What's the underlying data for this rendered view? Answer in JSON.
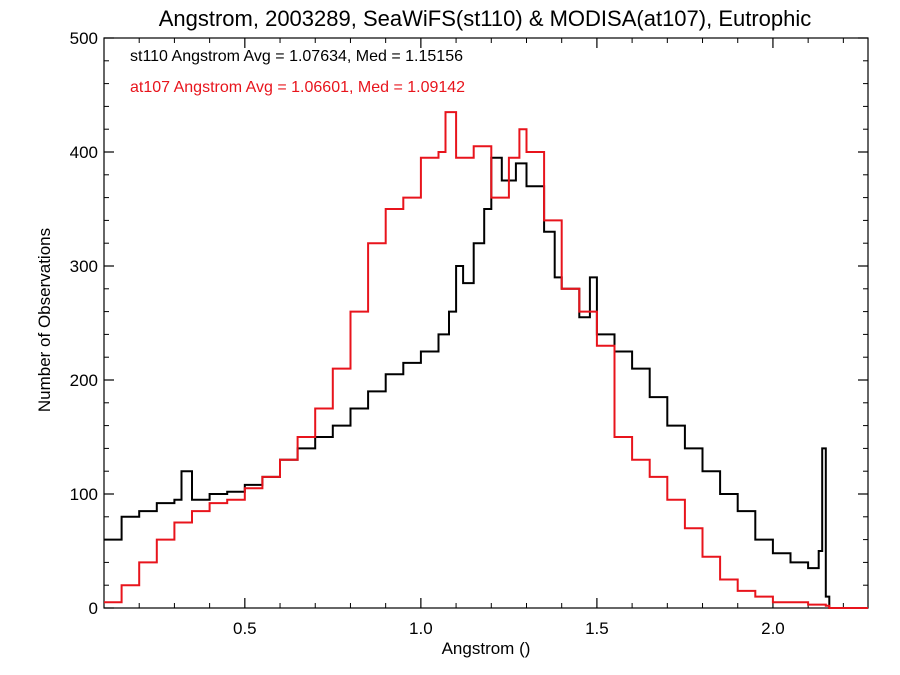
{
  "chart_data": {
    "type": "line",
    "title": "Angstrom, 2003289, SeaWiFS(st110) & MODISA(at107), Eutrophic",
    "xlabel": "Angstrom ()",
    "ylabel": "Number of Observations",
    "xlim": [
      0.1,
      2.27
    ],
    "ylim": [
      0,
      500
    ],
    "xticks": [
      0.5,
      1.0,
      1.5,
      2.0
    ],
    "xtick_labels": [
      "0.5",
      "1.0",
      "1.5",
      "2.0"
    ],
    "yticks": [
      0,
      100,
      200,
      300,
      400,
      500
    ],
    "ytick_labels": [
      "0",
      "100",
      "200",
      "300",
      "400",
      "500"
    ],
    "grid": false,
    "legend": "top-left, text annotations",
    "annotations": [
      {
        "text": "st110 Angstrom Avg = 1.07634, Med = 1.15156",
        "color": "#000000"
      },
      {
        "text": "at107 Angstrom Avg = 1.06601, Med = 1.09142",
        "color": "#e8141c"
      }
    ],
    "series": [
      {
        "color": "#000000",
        "points": [
          [
            0.1,
            60
          ],
          [
            0.15,
            80
          ],
          [
            0.2,
            85
          ],
          [
            0.25,
            92
          ],
          [
            0.3,
            95
          ],
          [
            0.32,
            120
          ],
          [
            0.35,
            95
          ],
          [
            0.4,
            100
          ],
          [
            0.45,
            102
          ],
          [
            0.5,
            108
          ],
          [
            0.55,
            115
          ],
          [
            0.6,
            130
          ],
          [
            0.65,
            140
          ],
          [
            0.7,
            150
          ],
          [
            0.75,
            160
          ],
          [
            0.8,
            175
          ],
          [
            0.85,
            190
          ],
          [
            0.9,
            205
          ],
          [
            0.95,
            215
          ],
          [
            1.0,
            225
          ],
          [
            1.05,
            240
          ],
          [
            1.08,
            260
          ],
          [
            1.1,
            300
          ],
          [
            1.12,
            285
          ],
          [
            1.15,
            320
          ],
          [
            1.18,
            350
          ],
          [
            1.2,
            395
          ],
          [
            1.23,
            375
          ],
          [
            1.27,
            390
          ],
          [
            1.3,
            370
          ],
          [
            1.35,
            330
          ],
          [
            1.38,
            290
          ],
          [
            1.4,
            280
          ],
          [
            1.45,
            255
          ],
          [
            1.48,
            290
          ],
          [
            1.5,
            240
          ],
          [
            1.55,
            225
          ],
          [
            1.6,
            210
          ],
          [
            1.65,
            185
          ],
          [
            1.7,
            160
          ],
          [
            1.75,
            140
          ],
          [
            1.8,
            120
          ],
          [
            1.85,
            100
          ],
          [
            1.9,
            85
          ],
          [
            1.95,
            60
          ],
          [
            2.0,
            48
          ],
          [
            2.05,
            40
          ],
          [
            2.1,
            35
          ],
          [
            2.13,
            50
          ],
          [
            2.14,
            140
          ],
          [
            2.15,
            10
          ],
          [
            2.16,
            0
          ],
          [
            2.27,
            0
          ]
        ]
      },
      {
        "color": "#e8141c",
        "points": [
          [
            0.1,
            5
          ],
          [
            0.15,
            20
          ],
          [
            0.2,
            40
          ],
          [
            0.25,
            60
          ],
          [
            0.3,
            75
          ],
          [
            0.35,
            85
          ],
          [
            0.4,
            92
          ],
          [
            0.45,
            95
          ],
          [
            0.5,
            105
          ],
          [
            0.55,
            115
          ],
          [
            0.6,
            130
          ],
          [
            0.65,
            150
          ],
          [
            0.7,
            175
          ],
          [
            0.75,
            210
          ],
          [
            0.8,
            260
          ],
          [
            0.85,
            320
          ],
          [
            0.9,
            350
          ],
          [
            0.95,
            360
          ],
          [
            1.0,
            395
          ],
          [
            1.05,
            400
          ],
          [
            1.07,
            435
          ],
          [
            1.1,
            395
          ],
          [
            1.15,
            405
          ],
          [
            1.2,
            360
          ],
          [
            1.25,
            395
          ],
          [
            1.28,
            420
          ],
          [
            1.3,
            400
          ],
          [
            1.35,
            340
          ],
          [
            1.4,
            280
          ],
          [
            1.45,
            260
          ],
          [
            1.5,
            230
          ],
          [
            1.55,
            150
          ],
          [
            1.6,
            130
          ],
          [
            1.65,
            115
          ],
          [
            1.7,
            95
          ],
          [
            1.75,
            70
          ],
          [
            1.8,
            45
          ],
          [
            1.85,
            25
          ],
          [
            1.9,
            15
          ],
          [
            1.95,
            10
          ],
          [
            2.0,
            5
          ],
          [
            2.1,
            3
          ],
          [
            2.15,
            2
          ],
          [
            2.16,
            0
          ],
          [
            2.27,
            0
          ]
        ]
      }
    ]
  }
}
